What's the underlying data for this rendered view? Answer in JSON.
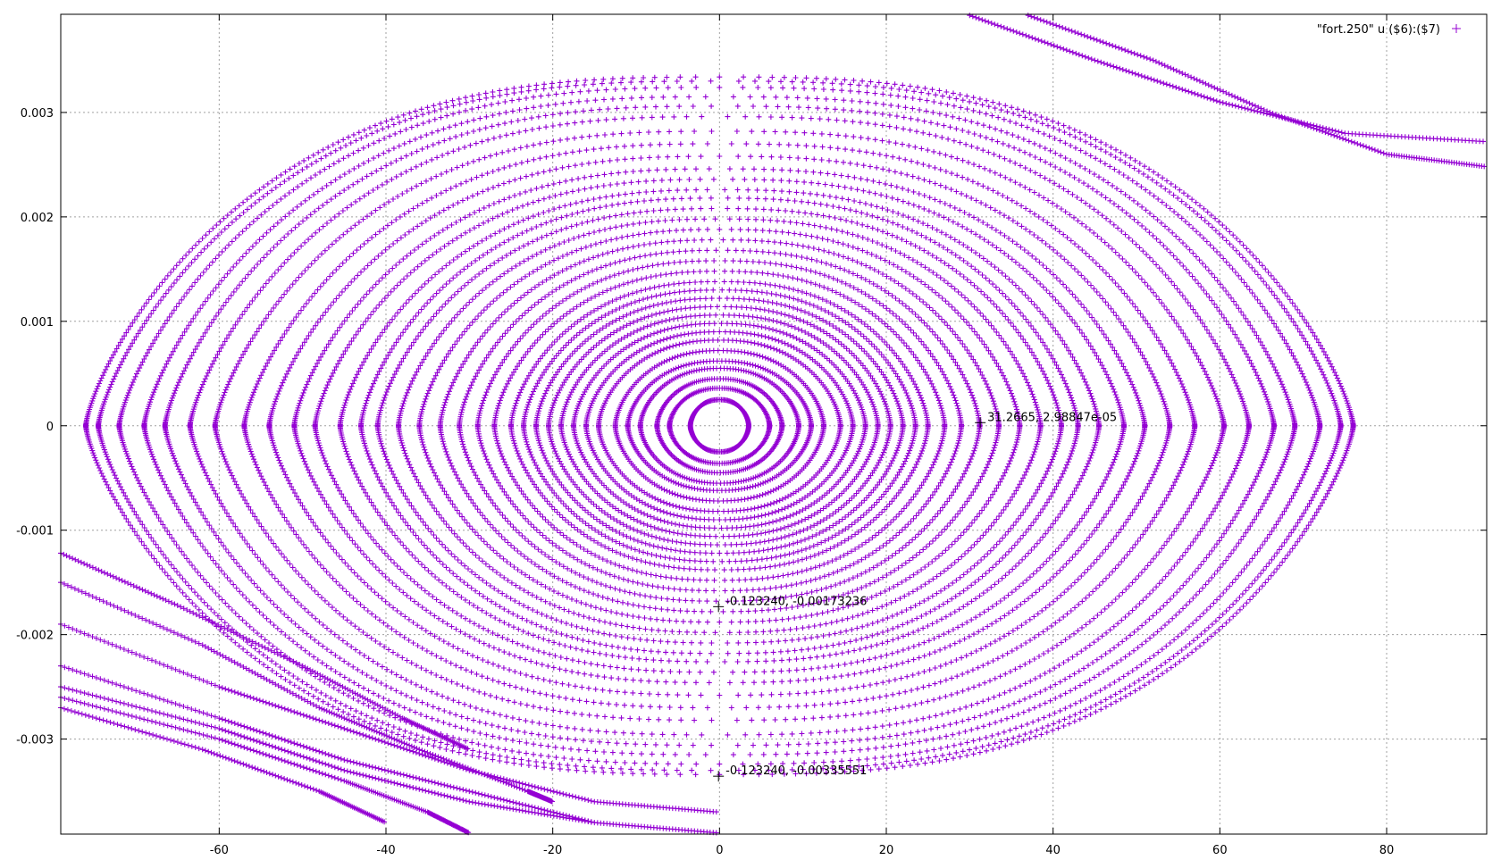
{
  "chart_data": {
    "type": "scatter",
    "title": "",
    "xlabel": "",
    "ylabel": "",
    "xlim": [
      -79,
      92
    ],
    "ylim": [
      -0.00391,
      0.00394
    ],
    "grid": true,
    "legend_position": "top-right",
    "x_ticks": [
      {
        "value": -60,
        "label": "-60"
      },
      {
        "value": -40,
        "label": "-40"
      },
      {
        "value": -20,
        "label": "-20"
      },
      {
        "value": 0,
        "label": "0"
      },
      {
        "value": 20,
        "label": "20"
      },
      {
        "value": 40,
        "label": "40"
      },
      {
        "value": 60,
        "label": "60"
      },
      {
        "value": 80,
        "label": "80"
      }
    ],
    "y_ticks": [
      {
        "value": -0.003,
        "label": "-0.003"
      },
      {
        "value": -0.002,
        "label": "-0.002"
      },
      {
        "value": -0.001,
        "label": "-0.001"
      },
      {
        "value": 0,
        "label": "0"
      },
      {
        "value": 0.001,
        "label": "0.001"
      },
      {
        "value": 0.002,
        "label": "0.002"
      },
      {
        "value": 0.003,
        "label": "0.003"
      }
    ],
    "series": [
      {
        "name": "\"fort.250\" u ($6):($7)",
        "color": "#9400d3",
        "marker": "plus",
        "orbits": [
          {
            "a": 3.5,
            "b": 0.00025
          },
          {
            "a": 6.0,
            "b": 0.00036
          },
          {
            "a": 7.5,
            "b": 0.00045
          },
          {
            "a": 9.5,
            "b": 0.00055
          },
          {
            "a": 11.0,
            "b": 0.00062
          },
          {
            "a": 12.5,
            "b": 0.00072
          },
          {
            "a": 14.5,
            "b": 0.00082
          },
          {
            "a": 16.0,
            "b": 0.0009
          },
          {
            "a": 17.5,
            "b": 0.00098
          },
          {
            "a": 19.0,
            "b": 0.00106
          },
          {
            "a": 20.5,
            "b": 0.00114
          },
          {
            "a": 22.0,
            "b": 0.00122
          },
          {
            "a": 23.5,
            "b": 0.0013
          },
          {
            "a": 25.0,
            "b": 0.00138
          },
          {
            "a": 27.0,
            "b": 0.00148
          },
          {
            "a": 29.0,
            "b": 0.00158
          },
          {
            "a": 31.2,
            "b": 0.00168
          },
          {
            "a": 33.5,
            "b": 0.00178
          },
          {
            "a": 36.0,
            "b": 0.00188
          },
          {
            "a": 38.5,
            "b": 0.00198
          },
          {
            "a": 41.0,
            "b": 0.00208
          },
          {
            "a": 43.0,
            "b": 0.00218
          },
          {
            "a": 45.5,
            "b": 0.00226
          },
          {
            "a": 48.5,
            "b": 0.00236
          },
          {
            "a": 51.0,
            "b": 0.00246
          },
          {
            "a": 54.0,
            "b": 0.00258
          },
          {
            "a": 57.0,
            "b": 0.0027
          },
          {
            "a": 60.5,
            "b": 0.00282
          },
          {
            "a": 63.5,
            "b": 0.00296
          },
          {
            "a": 66.5,
            "b": 0.00306
          },
          {
            "a": 69.0,
            "b": 0.00315
          },
          {
            "a": 72.0,
            "b": 0.00324
          },
          {
            "a": 74.5,
            "b": 0.0033
          },
          {
            "a": 76.0,
            "b": 0.00334
          }
        ],
        "open_branches": [
          {
            "points": [
              [
                30,
                0.00393
              ],
              [
                45,
                0.0035
              ],
              [
                60,
                0.0031
              ],
              [
                75,
                0.0028
              ],
              [
                92,
                0.00272
              ]
            ]
          },
          {
            "points": [
              [
                37,
                0.00393
              ],
              [
                52,
                0.0035
              ],
              [
                66,
                0.003
              ],
              [
                80,
                0.0026
              ],
              [
                92,
                0.00248
              ]
            ]
          },
          {
            "points": [
              [
                -79,
                -0.00122
              ],
              [
                -65,
                -0.00172
              ],
              [
                -50,
                -0.0023
              ],
              [
                -38,
                -0.0028
              ],
              [
                -30,
                -0.0031
              ]
            ]
          },
          {
            "points": [
              [
                -79,
                -0.0015
              ],
              [
                -62,
                -0.0021
              ],
              [
                -48,
                -0.0027
              ],
              [
                -36,
                -0.0031
              ],
              [
                -23,
                -0.0035
              ],
              [
                -20,
                -0.0036
              ]
            ]
          },
          {
            "points": [
              [
                -79,
                -0.0019
              ],
              [
                -60,
                -0.0025
              ],
              [
                -45,
                -0.0029
              ],
              [
                -30,
                -0.0033
              ],
              [
                -15,
                -0.0036
              ],
              [
                0,
                -0.0037
              ]
            ]
          },
          {
            "points": [
              [
                -79,
                -0.0023
              ],
              [
                -60,
                -0.0028
              ],
              [
                -45,
                -0.0032
              ],
              [
                -30,
                -0.0035
              ],
              [
                -15,
                -0.0038
              ],
              [
                0,
                -0.0039
              ]
            ]
          },
          {
            "points": [
              [
                -79,
                -0.0025
              ],
              [
                -60,
                -0.0029
              ],
              [
                -45,
                -0.0033
              ],
              [
                -30,
                -0.0036
              ],
              [
                -15,
                -0.0038
              ]
            ]
          },
          {
            "points": [
              [
                -79,
                -0.0026
              ],
              [
                -60,
                -0.003
              ],
              [
                -45,
                -0.0034
              ],
              [
                -35,
                -0.0037
              ],
              [
                -30,
                -0.0039
              ]
            ]
          },
          {
            "points": [
              [
                -79,
                -0.0027
              ],
              [
                -62,
                -0.0031
              ],
              [
                -48,
                -0.0035
              ],
              [
                -40,
                -0.0038
              ]
            ]
          }
        ]
      }
    ],
    "annotations": [
      {
        "x": 31.2665,
        "y": 2.98e-05,
        "label": "31.2665, 2.98847e-05"
      },
      {
        "x": -0.12324,
        "y": -0.00173236,
        "label": "-0.123240, -0.00173236"
      },
      {
        "x": -0.12324,
        "y": -0.00335551,
        "label": "-0.123240, -0.00335551"
      }
    ]
  }
}
